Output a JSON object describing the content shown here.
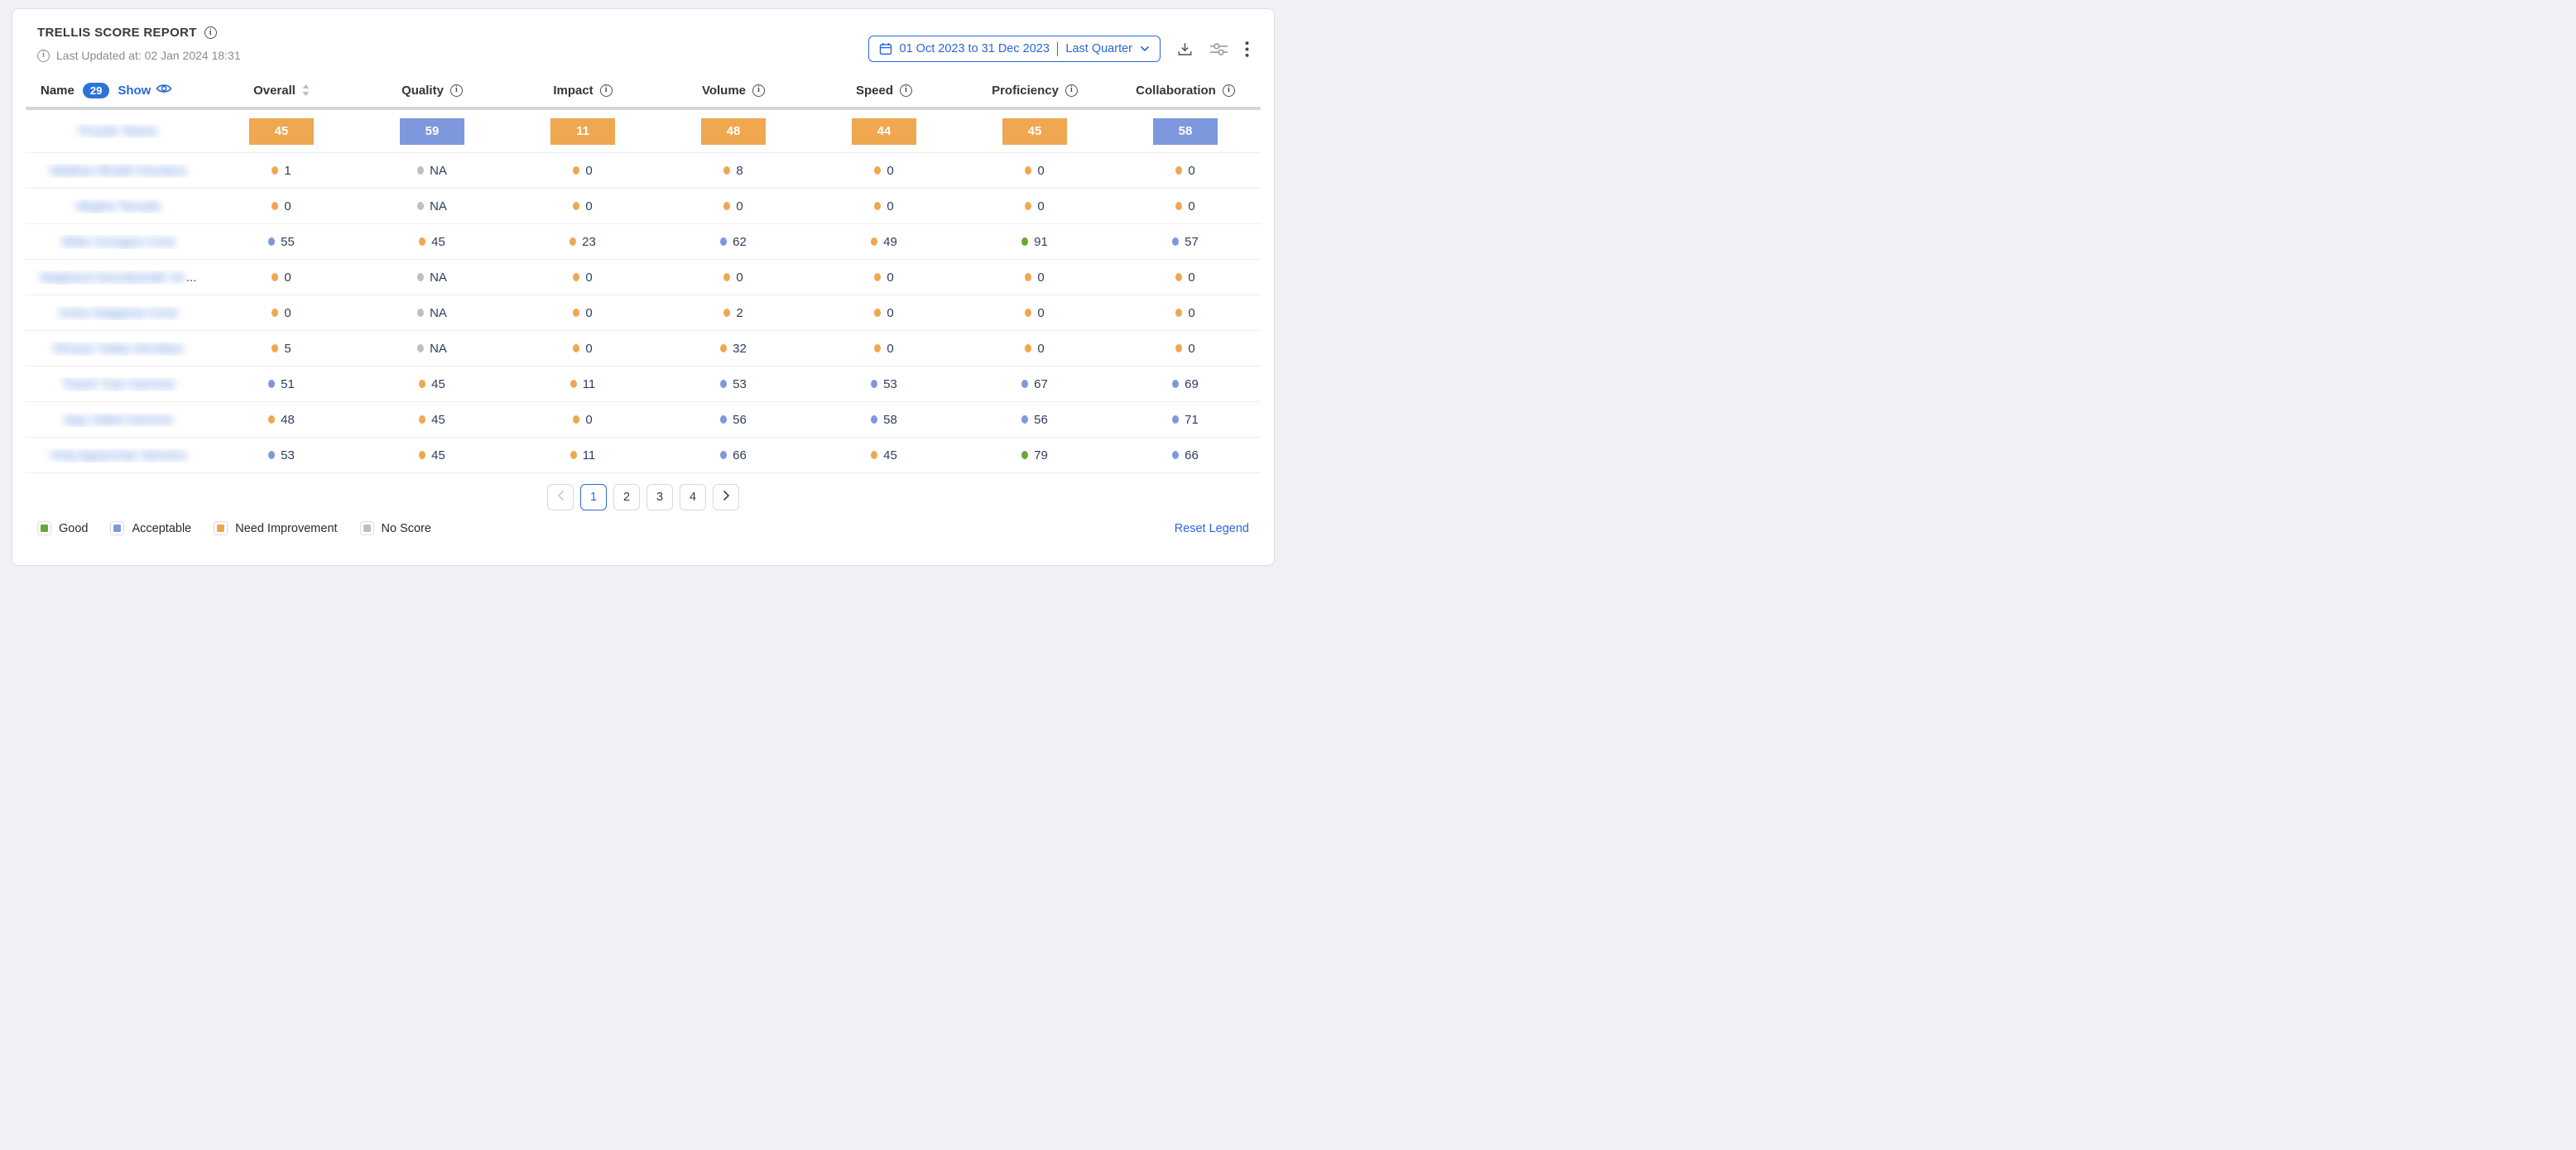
{
  "header": {
    "title": "TRELLIS SCORE REPORT",
    "last_updated": "Last Updated at: 02 Jan 2024 18:31"
  },
  "toolbar": {
    "date_range": "01 Oct 2023 to 31 Dec 2023",
    "date_preset": "Last Quarter",
    "icons": [
      "calendar-icon",
      "chevron-down-icon",
      "download-icon",
      "sliders-icon",
      "kebab-menu-icon"
    ]
  },
  "table": {
    "name_header": {
      "label": "Name",
      "count": "29",
      "show_label": "Show",
      "show_icon": "eye-icon"
    },
    "columns": [
      {
        "label": "Overall",
        "icon": "sort-icon"
      },
      {
        "label": "Quality",
        "icon": "info-icon"
      },
      {
        "label": "Impact",
        "icon": "info-icon"
      },
      {
        "label": "Volume",
        "icon": "info-icon"
      },
      {
        "label": "Speed",
        "icon": "info-icon"
      },
      {
        "label": "Proficiency",
        "icon": "info-icon"
      },
      {
        "label": "Collaboration",
        "icon": "info-icon"
      }
    ],
    "status_legend_keys": {
      "gd": "good",
      "ac": "acceptable",
      "ni": "need_improvement",
      "ns": "no_score"
    },
    "rows": [
      {
        "name": "Proyek Teams",
        "blurred": true,
        "type": "bar",
        "scores": [
          [
            "45",
            "ni"
          ],
          [
            "59",
            "ac"
          ],
          [
            "11",
            "ni"
          ],
          [
            "48",
            "ni"
          ],
          [
            "44",
            "ni"
          ],
          [
            "45",
            "ni"
          ],
          [
            "58",
            "ac"
          ]
        ]
      },
      {
        "name": "Madhav Bhadri Devdans",
        "blurred": true,
        "type": "dot",
        "scores": [
          [
            "1",
            "ni"
          ],
          [
            "NA",
            "ns"
          ],
          [
            "0",
            "ni"
          ],
          [
            "8",
            "ni"
          ],
          [
            "0",
            "ni"
          ],
          [
            "0",
            "ni"
          ],
          [
            "0",
            "ni"
          ]
        ]
      },
      {
        "name": "Megha Tarrada",
        "blurred": true,
        "type": "dot",
        "scores": [
          [
            "0",
            "ni"
          ],
          [
            "NA",
            "ns"
          ],
          [
            "0",
            "ni"
          ],
          [
            "0",
            "ni"
          ],
          [
            "0",
            "ni"
          ],
          [
            "0",
            "ni"
          ],
          [
            "0",
            "ni"
          ]
        ]
      },
      {
        "name": "Milan Sunagra Crest",
        "blurred": true,
        "type": "dot",
        "scores": [
          [
            "55",
            "ac"
          ],
          [
            "45",
            "ni"
          ],
          [
            "23",
            "ni"
          ],
          [
            "62",
            "ac"
          ],
          [
            "49",
            "ni"
          ],
          [
            "91",
            "gd"
          ],
          [
            "57",
            "ac"
          ]
        ]
      },
      {
        "name": "Meghana Deerakanath Ve",
        "blurred": true,
        "truncated": true,
        "type": "dot",
        "scores": [
          [
            "0",
            "ni"
          ],
          [
            "NA",
            "ns"
          ],
          [
            "0",
            "ni"
          ],
          [
            "0",
            "ni"
          ],
          [
            "0",
            "ni"
          ],
          [
            "0",
            "ni"
          ],
          [
            "0",
            "ni"
          ]
        ]
      },
      {
        "name": "Krina Vadgama Crest",
        "blurred": true,
        "type": "dot",
        "scores": [
          [
            "0",
            "ni"
          ],
          [
            "NA",
            "ns"
          ],
          [
            "0",
            "ni"
          ],
          [
            "2",
            "ni"
          ],
          [
            "0",
            "ni"
          ],
          [
            "0",
            "ni"
          ],
          [
            "0",
            "ni"
          ]
        ]
      },
      {
        "name": "Shivani Yadav Devdans",
        "blurred": true,
        "type": "dot",
        "scores": [
          [
            "5",
            "ni"
          ],
          [
            "NA",
            "ns"
          ],
          [
            "0",
            "ni"
          ],
          [
            "32",
            "ni"
          ],
          [
            "0",
            "ni"
          ],
          [
            "0",
            "ni"
          ],
          [
            "0",
            "ni"
          ]
        ]
      },
      {
        "name": "Thanh Tran Harness",
        "blurred": true,
        "type": "dot",
        "scores": [
          [
            "51",
            "ac"
          ],
          [
            "45",
            "ni"
          ],
          [
            "11",
            "ni"
          ],
          [
            "53",
            "ac"
          ],
          [
            "53",
            "ac"
          ],
          [
            "67",
            "ac"
          ],
          [
            "69",
            "ac"
          ]
        ]
      },
      {
        "name": "Ajay Saket Harness",
        "blurred": true,
        "type": "dot",
        "scores": [
          [
            "48",
            "ni"
          ],
          [
            "45",
            "ni"
          ],
          [
            "0",
            "ni"
          ],
          [
            "56",
            "ac"
          ],
          [
            "58",
            "ac"
          ],
          [
            "56",
            "ac"
          ],
          [
            "71",
            "ac"
          ]
        ]
      },
      {
        "name": "Viraj Agyanchar Harness",
        "blurred": true,
        "type": "dot",
        "scores": [
          [
            "53",
            "ac"
          ],
          [
            "45",
            "ni"
          ],
          [
            "11",
            "ni"
          ],
          [
            "66",
            "ac"
          ],
          [
            "45",
            "ni"
          ],
          [
            "79",
            "gd"
          ],
          [
            "66",
            "ac"
          ]
        ]
      }
    ]
  },
  "pagination": {
    "prev_disabled": true,
    "pages": [
      "1",
      "2",
      "3",
      "4"
    ],
    "active_page": "1",
    "next_disabled": false
  },
  "legend": {
    "items": [
      {
        "label": "Good",
        "key": "gd"
      },
      {
        "label": "Acceptable",
        "key": "ac"
      },
      {
        "label": "Need Improvement",
        "key": "ni"
      },
      {
        "label": "No Score",
        "key": "ns"
      }
    ],
    "reset_label": "Reset Legend"
  },
  "colors": {
    "good": "#69a733",
    "acceptable": "#7d98dc",
    "need_improvement": "#efa750",
    "no_score": "#bfbfbf",
    "accent_blue": "#2867d8",
    "score_text": "#2e3d5c"
  }
}
